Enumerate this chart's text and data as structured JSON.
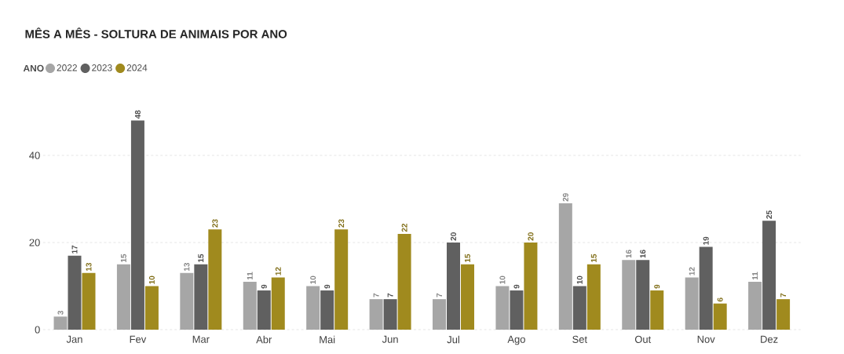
{
  "chart_data": {
    "type": "bar",
    "title": "MÊS A MÊS - SOLTURA DE ANIMAIS POR ANO",
    "legend_title": "ANO",
    "categories": [
      "Jan",
      "Fev",
      "Mar",
      "Abr",
      "Mai",
      "Jun",
      "Jul",
      "Ago",
      "Set",
      "Out",
      "Nov",
      "Dez"
    ],
    "series": [
      {
        "name": "2022",
        "color": "#a6a6a6",
        "values": [
          3,
          15,
          13,
          11,
          10,
          7,
          7,
          10,
          29,
          16,
          12,
          11
        ]
      },
      {
        "name": "2023",
        "color": "#606060",
        "values": [
          17,
          48,
          15,
          9,
          9,
          7,
          20,
          9,
          10,
          16,
          19,
          25
        ]
      },
      {
        "name": "2024",
        "color": "#a08a1e",
        "values": [
          13,
          10,
          23,
          12,
          23,
          22,
          15,
          20,
          15,
          9,
          6,
          7
        ]
      }
    ],
    "ylim": [
      0,
      48
    ],
    "yticks": [
      0,
      20,
      40
    ],
    "grid": "y",
    "legend": "top left",
    "data_labels": true
  }
}
